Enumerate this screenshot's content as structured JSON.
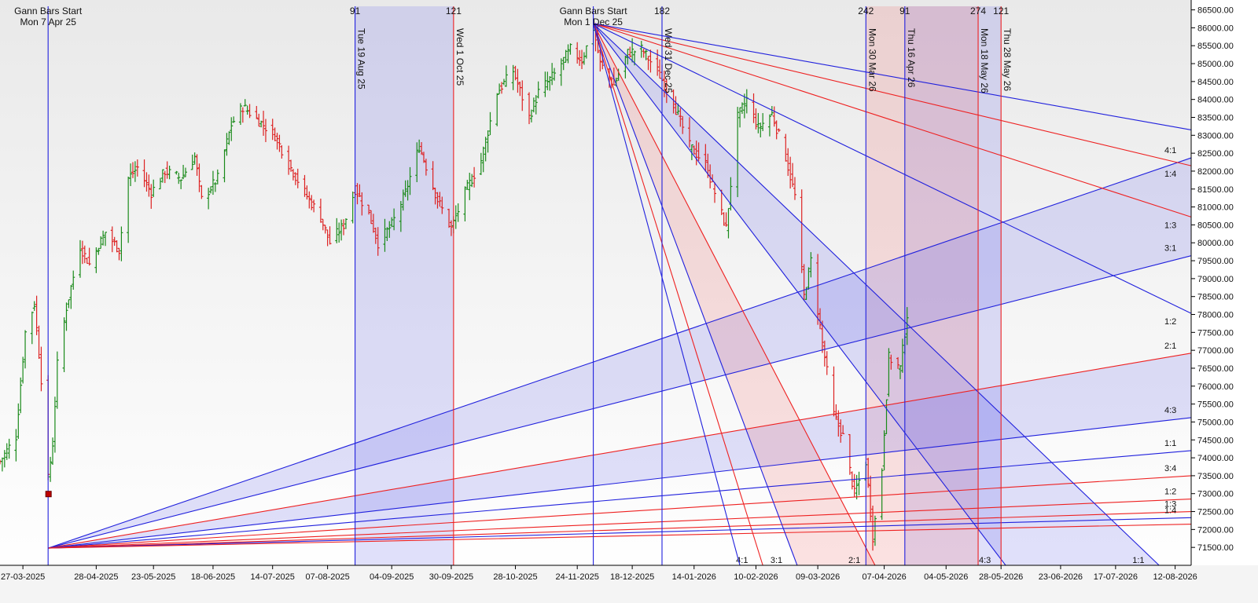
{
  "chart_data": {
    "type": "ohlc",
    "y_axis": {
      "min": 71000,
      "max": 86600,
      "ticks": [
        86500,
        86000,
        85500,
        85000,
        84500,
        84000,
        83500,
        83000,
        82500,
        82000,
        81500,
        81000,
        80500,
        80000,
        79500,
        79000,
        78500,
        78000,
        77500,
        77000,
        76500,
        76000,
        75500,
        75000,
        74500,
        74000,
        73500,
        73000,
        72500,
        72000,
        71500
      ],
      "tick_format": "2dp",
      "position": "right"
    },
    "x_axis": {
      "start": "2025-03-17",
      "end": "2026-08-19",
      "tick_labels": [
        "27-03-2025",
        "28-04-2025",
        "23-05-2025",
        "18-06-2025",
        "14-07-2025",
        "07-08-2025",
        "04-09-2025",
        "30-09-2025",
        "28-10-2025",
        "24-11-2025",
        "18-12-2025",
        "14-01-2026",
        "10-02-2026",
        "09-03-2026",
        "07-04-2026",
        "04-05-2026",
        "28-05-2026",
        "23-06-2026",
        "17-07-2026",
        "12-08-2026"
      ]
    },
    "colors": {
      "up": "#1a8a1a",
      "down": "#dd2222",
      "blue": "#2020dd",
      "red": "#ee2020",
      "blue_fill": "rgba(120,120,235,0.22)",
      "red_fill": "rgba(240,110,110,0.20)"
    },
    "price_path": [
      {
        "date": "2025-03-17",
        "close": 73900
      },
      {
        "date": "2025-03-24",
        "close": 74600
      },
      {
        "date": "2025-03-28",
        "close": 77500
      },
      {
        "date": "2025-04-01",
        "close": 78300
      },
      {
        "date": "2025-04-04",
        "close": 76200
      },
      {
        "date": "2025-04-07",
        "close": 73400
      },
      {
        "date": "2025-04-09",
        "close": 74400
      },
      {
        "date": "2025-04-11",
        "close": 76600
      },
      {
        "date": "2025-04-15",
        "close": 78200
      },
      {
        "date": "2025-04-21",
        "close": 79900
      },
      {
        "date": "2025-04-25",
        "close": 79400
      },
      {
        "date": "2025-05-02",
        "close": 80300
      },
      {
        "date": "2025-05-08",
        "close": 79800
      },
      {
        "date": "2025-05-12",
        "close": 81800
      },
      {
        "date": "2025-05-16",
        "close": 82100
      },
      {
        "date": "2025-05-22",
        "close": 81400
      },
      {
        "date": "2025-05-28",
        "close": 82000
      },
      {
        "date": "2025-06-04",
        "close": 81800
      },
      {
        "date": "2025-06-10",
        "close": 82400
      },
      {
        "date": "2025-06-13",
        "close": 81200
      },
      {
        "date": "2025-06-20",
        "close": 81800
      },
      {
        "date": "2025-06-26",
        "close": 83300
      },
      {
        "date": "2025-07-01",
        "close": 83800
      },
      {
        "date": "2025-07-08",
        "close": 83400
      },
      {
        "date": "2025-07-15",
        "close": 83000
      },
      {
        "date": "2025-07-21",
        "close": 82200
      },
      {
        "date": "2025-07-28",
        "close": 81400
      },
      {
        "date": "2025-08-04",
        "close": 80700
      },
      {
        "date": "2025-08-08",
        "close": 80000
      },
      {
        "date": "2025-08-14",
        "close": 80500
      },
      {
        "date": "2025-08-19",
        "close": 81500
      },
      {
        "date": "2025-08-25",
        "close": 80800
      },
      {
        "date": "2025-08-29",
        "close": 80000
      },
      {
        "date": "2025-09-04",
        "close": 80500
      },
      {
        "date": "2025-09-10",
        "close": 81400
      },
      {
        "date": "2025-09-16",
        "close": 82700
      },
      {
        "date": "2025-09-24",
        "close": 81200
      },
      {
        "date": "2025-09-30",
        "close": 80400
      },
      {
        "date": "2025-10-06",
        "close": 81400
      },
      {
        "date": "2025-10-13",
        "close": 82300
      },
      {
        "date": "2025-10-20",
        "close": 84200
      },
      {
        "date": "2025-10-27",
        "close": 84800
      },
      {
        "date": "2025-11-03",
        "close": 83500
      },
      {
        "date": "2025-11-07",
        "close": 84200
      },
      {
        "date": "2025-11-14",
        "close": 84700
      },
      {
        "date": "2025-11-21",
        "close": 85400
      },
      {
        "date": "2025-11-26",
        "close": 85100
      },
      {
        "date": "2025-12-01",
        "close": 86000
      },
      {
        "date": "2025-12-04",
        "close": 85000
      },
      {
        "date": "2025-12-10",
        "close": 84400
      },
      {
        "date": "2025-12-16",
        "close": 85300
      },
      {
        "date": "2025-12-22",
        "close": 85400
      },
      {
        "date": "2025-12-29",
        "close": 84800
      },
      {
        "date": "2026-01-05",
        "close": 83900
      },
      {
        "date": "2026-01-12",
        "close": 82700
      },
      {
        "date": "2026-01-19",
        "close": 82200
      },
      {
        "date": "2026-01-23",
        "close": 81400
      },
      {
        "date": "2026-01-28",
        "close": 80400
      },
      {
        "date": "2026-02-02",
        "close": 83500
      },
      {
        "date": "2026-02-06",
        "close": 84000
      },
      {
        "date": "2026-02-11",
        "close": 83200
      },
      {
        "date": "2026-02-17",
        "close": 83600
      },
      {
        "date": "2026-02-23",
        "close": 82400
      },
      {
        "date": "2026-02-27",
        "close": 81300
      },
      {
        "date": "2026-03-03",
        "close": 78500
      },
      {
        "date": "2026-03-06",
        "close": 79500
      },
      {
        "date": "2026-03-11",
        "close": 77200
      },
      {
        "date": "2026-03-16",
        "close": 75200
      },
      {
        "date": "2026-03-20",
        "close": 74600
      },
      {
        "date": "2026-03-25",
        "close": 73000
      },
      {
        "date": "2026-03-30",
        "close": 73900
      },
      {
        "date": "2026-04-02",
        "close": 71800
      },
      {
        "date": "2026-04-06",
        "close": 73700
      },
      {
        "date": "2026-04-09",
        "close": 76800
      },
      {
        "date": "2026-04-14",
        "close": 76500
      },
      {
        "date": "2026-04-17",
        "close": 78000
      }
    ],
    "marker": {
      "date": "2025-04-07",
      "value": 73000
    },
    "vertical_lines": [
      {
        "date": "2025-04-07",
        "color": "blue",
        "top_label": "Gann Bars Start",
        "date_label": "Mon 7 Apr 25",
        "label_style": "top-center"
      },
      {
        "date": "2025-08-19",
        "color": "blue",
        "date_label": "Tue 19 Aug 25",
        "top_number": "91",
        "label_style": "rotated"
      },
      {
        "date": "2025-10-01",
        "color": "red",
        "date_label": "Wed 1 Oct 25",
        "top_number": "121",
        "label_style": "rotated"
      },
      {
        "date": "2025-12-01",
        "color": "blue",
        "top_label": "Gann Bars Start",
        "date_label": "Mon 1 Dec 25",
        "label_style": "top-center"
      },
      {
        "date": "2025-12-31",
        "color": "blue",
        "date_label": "Wed 31 Dec 25",
        "top_number": "182",
        "label_style": "rotated"
      },
      {
        "date": "2026-03-30",
        "color": "blue",
        "date_label": "Mon 30 Mar 26",
        "top_number": "242",
        "label_style": "rotated"
      },
      {
        "date": "2026-04-16",
        "color": "blue",
        "date_label": "Thu 16 Apr 26",
        "top_number": "91",
        "label_style": "rotated"
      },
      {
        "date": "2026-05-18",
        "color": "red",
        "date_label": "Mon 18 May 26",
        "top_number": "274",
        "label_style": "rotated"
      },
      {
        "date": "2026-05-28",
        "color": "red",
        "date_label": "Thu 28 May 26",
        "top_number": "121",
        "label_style": "rotated"
      }
    ],
    "shaded_time_bands": [
      {
        "from": "2025-08-19",
        "to": "2025-10-01",
        "color": "blue"
      },
      {
        "from": "2026-04-16",
        "to": "2026-05-28",
        "color": "blue"
      },
      {
        "from": "2026-03-30",
        "to": "2026-05-18",
        "color": "red"
      }
    ],
    "gann_fans": [
      {
        "origin": {
          "date": "2025-04-07",
          "value": 71480
        },
        "direction": "up",
        "lines": [
          {
            "label": "4:1",
            "color": "blue",
            "end_value": 82370
          },
          {
            "label": "3:1",
            "color": "blue",
            "end_value": 79640
          },
          {
            "label": "2:1",
            "color": "red",
            "end_value": 76920
          },
          {
            "label": "4:3",
            "color": "blue",
            "end_value": 75120
          },
          {
            "label": "1:1",
            "color": "blue",
            "end_value": 74200
          },
          {
            "label": "3:4",
            "color": "red",
            "end_value": 73500
          },
          {
            "label": "1:2",
            "color": "red",
            "end_value": 72850
          },
          {
            "label": "1:3",
            "color": "red",
            "end_value": 72500
          },
          {
            "label": "1:4",
            "color": "blue",
            "end_value": 72330
          },
          {
            "label": "",
            "color": "red",
            "end_value": 72150
          }
        ],
        "fills": [
          [
            "4:1",
            "3:1",
            "blue"
          ],
          [
            "2:1",
            "4:3",
            "blue"
          ]
        ]
      },
      {
        "origin": {
          "date": "2025-12-01",
          "value": 86120
        },
        "direction": "down",
        "lines": [
          {
            "label": "1:4",
            "color": "red",
            "end_value": 82150
          },
          {
            "label": "1:3",
            "color": "red",
            "end_value": 80720
          },
          {
            "label": "1:2",
            "color": "blue",
            "end_value": 78030
          },
          {
            "label": "1:1",
            "color": "blue",
            "bottom_date": "2026-08-05"
          },
          {
            "label": "4:3",
            "color": "blue",
            "bottom_date": "2026-05-30"
          },
          {
            "label": "2:1",
            "color": "red",
            "bottom_date": "2026-04-03"
          },
          {
            "label": "3:1",
            "color": "blue",
            "bottom_date": "2026-02-28"
          },
          {
            "label": "4:1",
            "color": "red",
            "bottom_date": "2026-02-13"
          },
          {
            "label": "",
            "color": "blue",
            "bottom_date": "2026-02-03"
          },
          {
            "label": "",
            "color": "blue",
            "end_value": 83150
          }
        ],
        "fills": [
          [
            "1:1",
            "4:3",
            "blue"
          ],
          [
            "2:1",
            "3:1",
            "red"
          ]
        ]
      }
    ],
    "top_labels": [
      "Gann Bars Start",
      "Mon 7 Apr 25",
      "91",
      "121",
      "Gann Bars Start",
      "Mon 1 Dec 25",
      "182",
      "242",
      "91",
      "274",
      "121"
    ]
  }
}
